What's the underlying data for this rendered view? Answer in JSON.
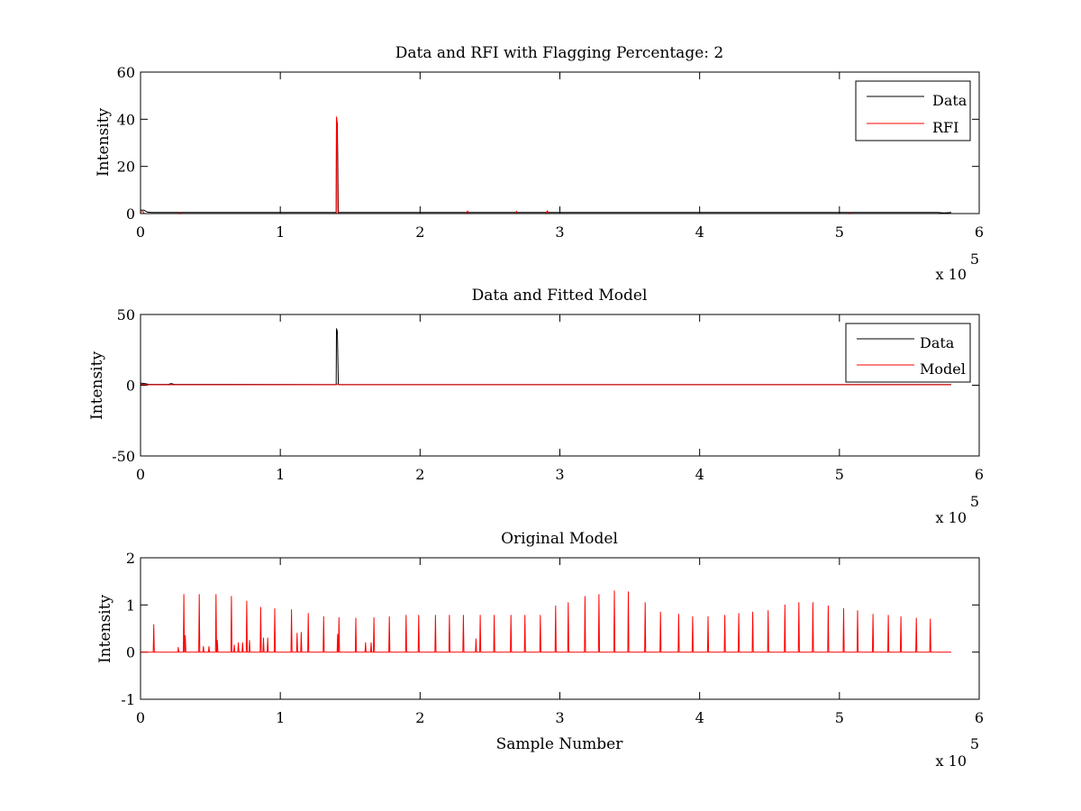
{
  "chart_data": [
    {
      "type": "line",
      "title": "Data and RFI with Flagging Percentage: 2",
      "xlabel": "",
      "ylabel": "Intensity",
      "xlim": [
        0,
        600000
      ],
      "ylim": [
        0,
        60
      ],
      "x_ticks": [
        0,
        1,
        2,
        3,
        4,
        5,
        6
      ],
      "y_ticks": [
        0,
        20,
        40,
        60
      ],
      "x_multiplier": {
        "base": "x 10",
        "exponent": "5"
      },
      "grid": false,
      "legend": "top-right",
      "series": [
        {
          "name": "Data",
          "color": "#000000",
          "points": [
            [
              0,
              1.5
            ],
            [
              2500,
              1.4
            ],
            [
              5000,
              0.6
            ],
            [
              8000,
              0.5
            ],
            [
              140000,
              0.5
            ],
            [
              140200,
              40
            ],
            [
              140800,
              38
            ],
            [
              141500,
              0.5
            ],
            [
              570000,
              0.5
            ],
            [
              575000,
              0.3
            ],
            [
              580000,
              0.5
            ]
          ]
        },
        {
          "name": "RFI",
          "color": "#ff0000",
          "points": [
            [
              0,
              0.8
            ],
            [
              2000,
              0.8
            ],
            [
              2500,
              0
            ],
            [
              27000,
              0
            ],
            [
              28000,
              0.5
            ],
            [
              29000,
              0
            ],
            [
              140000,
              0
            ],
            [
              140200,
              41
            ],
            [
              140600,
              39
            ],
            [
              141200,
              0
            ],
            [
              233000,
              0
            ],
            [
              234000,
              1.1
            ],
            [
              235000,
              0
            ],
            [
              268000,
              0
            ],
            [
              269000,
              1
            ],
            [
              270000,
              0
            ],
            [
              290000,
              0
            ],
            [
              291000,
              1.2
            ],
            [
              292000,
              0
            ],
            [
              506000,
              0
            ],
            [
              507000,
              0.4
            ],
            [
              508000,
              0
            ],
            [
              580000,
              0
            ]
          ]
        }
      ]
    },
    {
      "type": "line",
      "title": "Data and Fitted Model",
      "xlabel": "",
      "ylabel": "Intensity",
      "xlim": [
        0,
        600000
      ],
      "ylim": [
        -50,
        50
      ],
      "x_ticks": [
        0,
        1,
        2,
        3,
        4,
        5,
        6
      ],
      "y_ticks": [
        -50,
        0,
        50
      ],
      "x_multiplier": {
        "base": "x 10",
        "exponent": "5"
      },
      "grid": false,
      "legend": "top-right",
      "series": [
        {
          "name": "Data",
          "color": "#000000",
          "points": [
            [
              0,
              1.5
            ],
            [
              3000,
              1.2
            ],
            [
              6000,
              0.6
            ],
            [
              20000,
              0.6
            ],
            [
              22000,
              1.2
            ],
            [
              24000,
              0.6
            ],
            [
              140000,
              0.5
            ],
            [
              140200,
              40
            ],
            [
              140800,
              38
            ],
            [
              141500,
              0.5
            ],
            [
              580000,
              0.5
            ]
          ]
        },
        {
          "name": "Model",
          "color": "#ff0000",
          "points": [
            [
              0,
              0.8
            ],
            [
              3000,
              0.6
            ],
            [
              6000,
              0.3
            ],
            [
              140000,
              0.3
            ],
            [
              141000,
              0.9
            ],
            [
              142000,
              0.3
            ],
            [
              580000,
              0.3
            ]
          ]
        }
      ]
    },
    {
      "type": "line",
      "title": "Original Model",
      "xlabel": "Sample Number",
      "ylabel": "Intensity",
      "xlim": [
        0,
        600000
      ],
      "ylim": [
        -1,
        2
      ],
      "x_ticks": [
        0,
        1,
        2,
        3,
        4,
        5,
        6
      ],
      "y_ticks": [
        -1,
        0,
        1,
        2
      ],
      "x_multiplier": {
        "base": "x 10",
        "exponent": "5"
      },
      "grid": false,
      "legend": "none",
      "series": [
        {
          "color": "#ff0000",
          "baseline": 0,
          "x_end": 580000,
          "spikes": [
            [
              9500,
              0.58
            ],
            [
              27000,
              0.1
            ],
            [
              31000,
              1.22
            ],
            [
              32000,
              0.35
            ],
            [
              42000,
              1.22
            ],
            [
              45000,
              0.12
            ],
            [
              49000,
              0.12
            ],
            [
              54000,
              1.22
            ],
            [
              55000,
              0.25
            ],
            [
              65000,
              1.18
            ],
            [
              67000,
              0.15
            ],
            [
              70000,
              0.2
            ],
            [
              73000,
              0.2
            ],
            [
              76000,
              1.08
            ],
            [
              78000,
              0.25
            ],
            [
              86000,
              0.95
            ],
            [
              88000,
              0.3
            ],
            [
              91000,
              0.3
            ],
            [
              96000,
              0.92
            ],
            [
              108000,
              0.9
            ],
            [
              112000,
              0.4
            ],
            [
              115000,
              0.42
            ],
            [
              120000,
              0.82
            ],
            [
              131000,
              0.75
            ],
            [
              141000,
              0.38
            ],
            [
              142000,
              0.73
            ],
            [
              154000,
              0.72
            ],
            [
              161000,
              0.2
            ],
            [
              165000,
              0.2
            ],
            [
              167000,
              0.73
            ],
            [
              178000,
              0.75
            ],
            [
              190000,
              0.78
            ],
            [
              199000,
              0.78
            ],
            [
              211000,
              0.78
            ],
            [
              221000,
              0.78
            ],
            [
              231000,
              0.78
            ],
            [
              240000,
              0.28
            ],
            [
              243000,
              0.78
            ],
            [
              253000,
              0.78
            ],
            [
              265000,
              0.78
            ],
            [
              275000,
              0.78
            ],
            [
              286000,
              0.78
            ],
            [
              297000,
              0.98
            ],
            [
              306000,
              1.05
            ],
            [
              318000,
              1.18
            ],
            [
              328000,
              1.22
            ],
            [
              339000,
              1.3
            ],
            [
              349000,
              1.28
            ],
            [
              361000,
              1.05
            ],
            [
              372000,
              0.85
            ],
            [
              385000,
              0.8
            ],
            [
              395000,
              0.75
            ],
            [
              406000,
              0.75
            ],
            [
              418000,
              0.78
            ],
            [
              428000,
              0.82
            ],
            [
              438000,
              0.85
            ],
            [
              449000,
              0.88
            ],
            [
              461000,
              1.0
            ],
            [
              471000,
              1.05
            ],
            [
              481000,
              1.05
            ],
            [
              492000,
              0.98
            ],
            [
              503000,
              0.92
            ],
            [
              513000,
              0.88
            ],
            [
              524000,
              0.8
            ],
            [
              535000,
              0.78
            ],
            [
              544000,
              0.75
            ],
            [
              555000,
              0.72
            ],
            [
              565000,
              0.7
            ]
          ]
        }
      ]
    }
  ]
}
